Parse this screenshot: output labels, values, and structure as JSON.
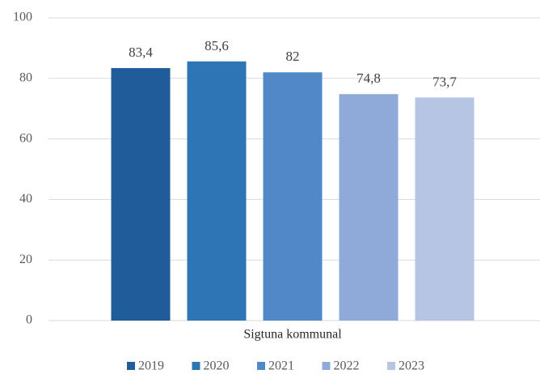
{
  "chart_data": {
    "type": "bar",
    "categories": [
      "Sigtuna kommunal"
    ],
    "series": [
      {
        "name": "2019",
        "color": "#1f5c99",
        "values": [
          83.4
        ],
        "value_labels": [
          "83,4"
        ]
      },
      {
        "name": "2020",
        "color": "#2e75b6",
        "values": [
          85.6
        ],
        "value_labels": [
          "85,6"
        ]
      },
      {
        "name": "2021",
        "color": "#5188c8",
        "values": [
          82
        ],
        "value_labels": [
          "82"
        ]
      },
      {
        "name": "2022",
        "color": "#8faad8",
        "values": [
          74.8
        ],
        "value_labels": [
          "74,8"
        ]
      },
      {
        "name": "2023",
        "color": "#b6c5e4",
        "values": [
          73.7
        ],
        "value_labels": [
          "73,7"
        ]
      }
    ],
    "ylim": [
      0,
      100
    ],
    "yticks": [
      0,
      20,
      40,
      60,
      80,
      100
    ],
    "grid": true,
    "legend": "bottom"
  }
}
